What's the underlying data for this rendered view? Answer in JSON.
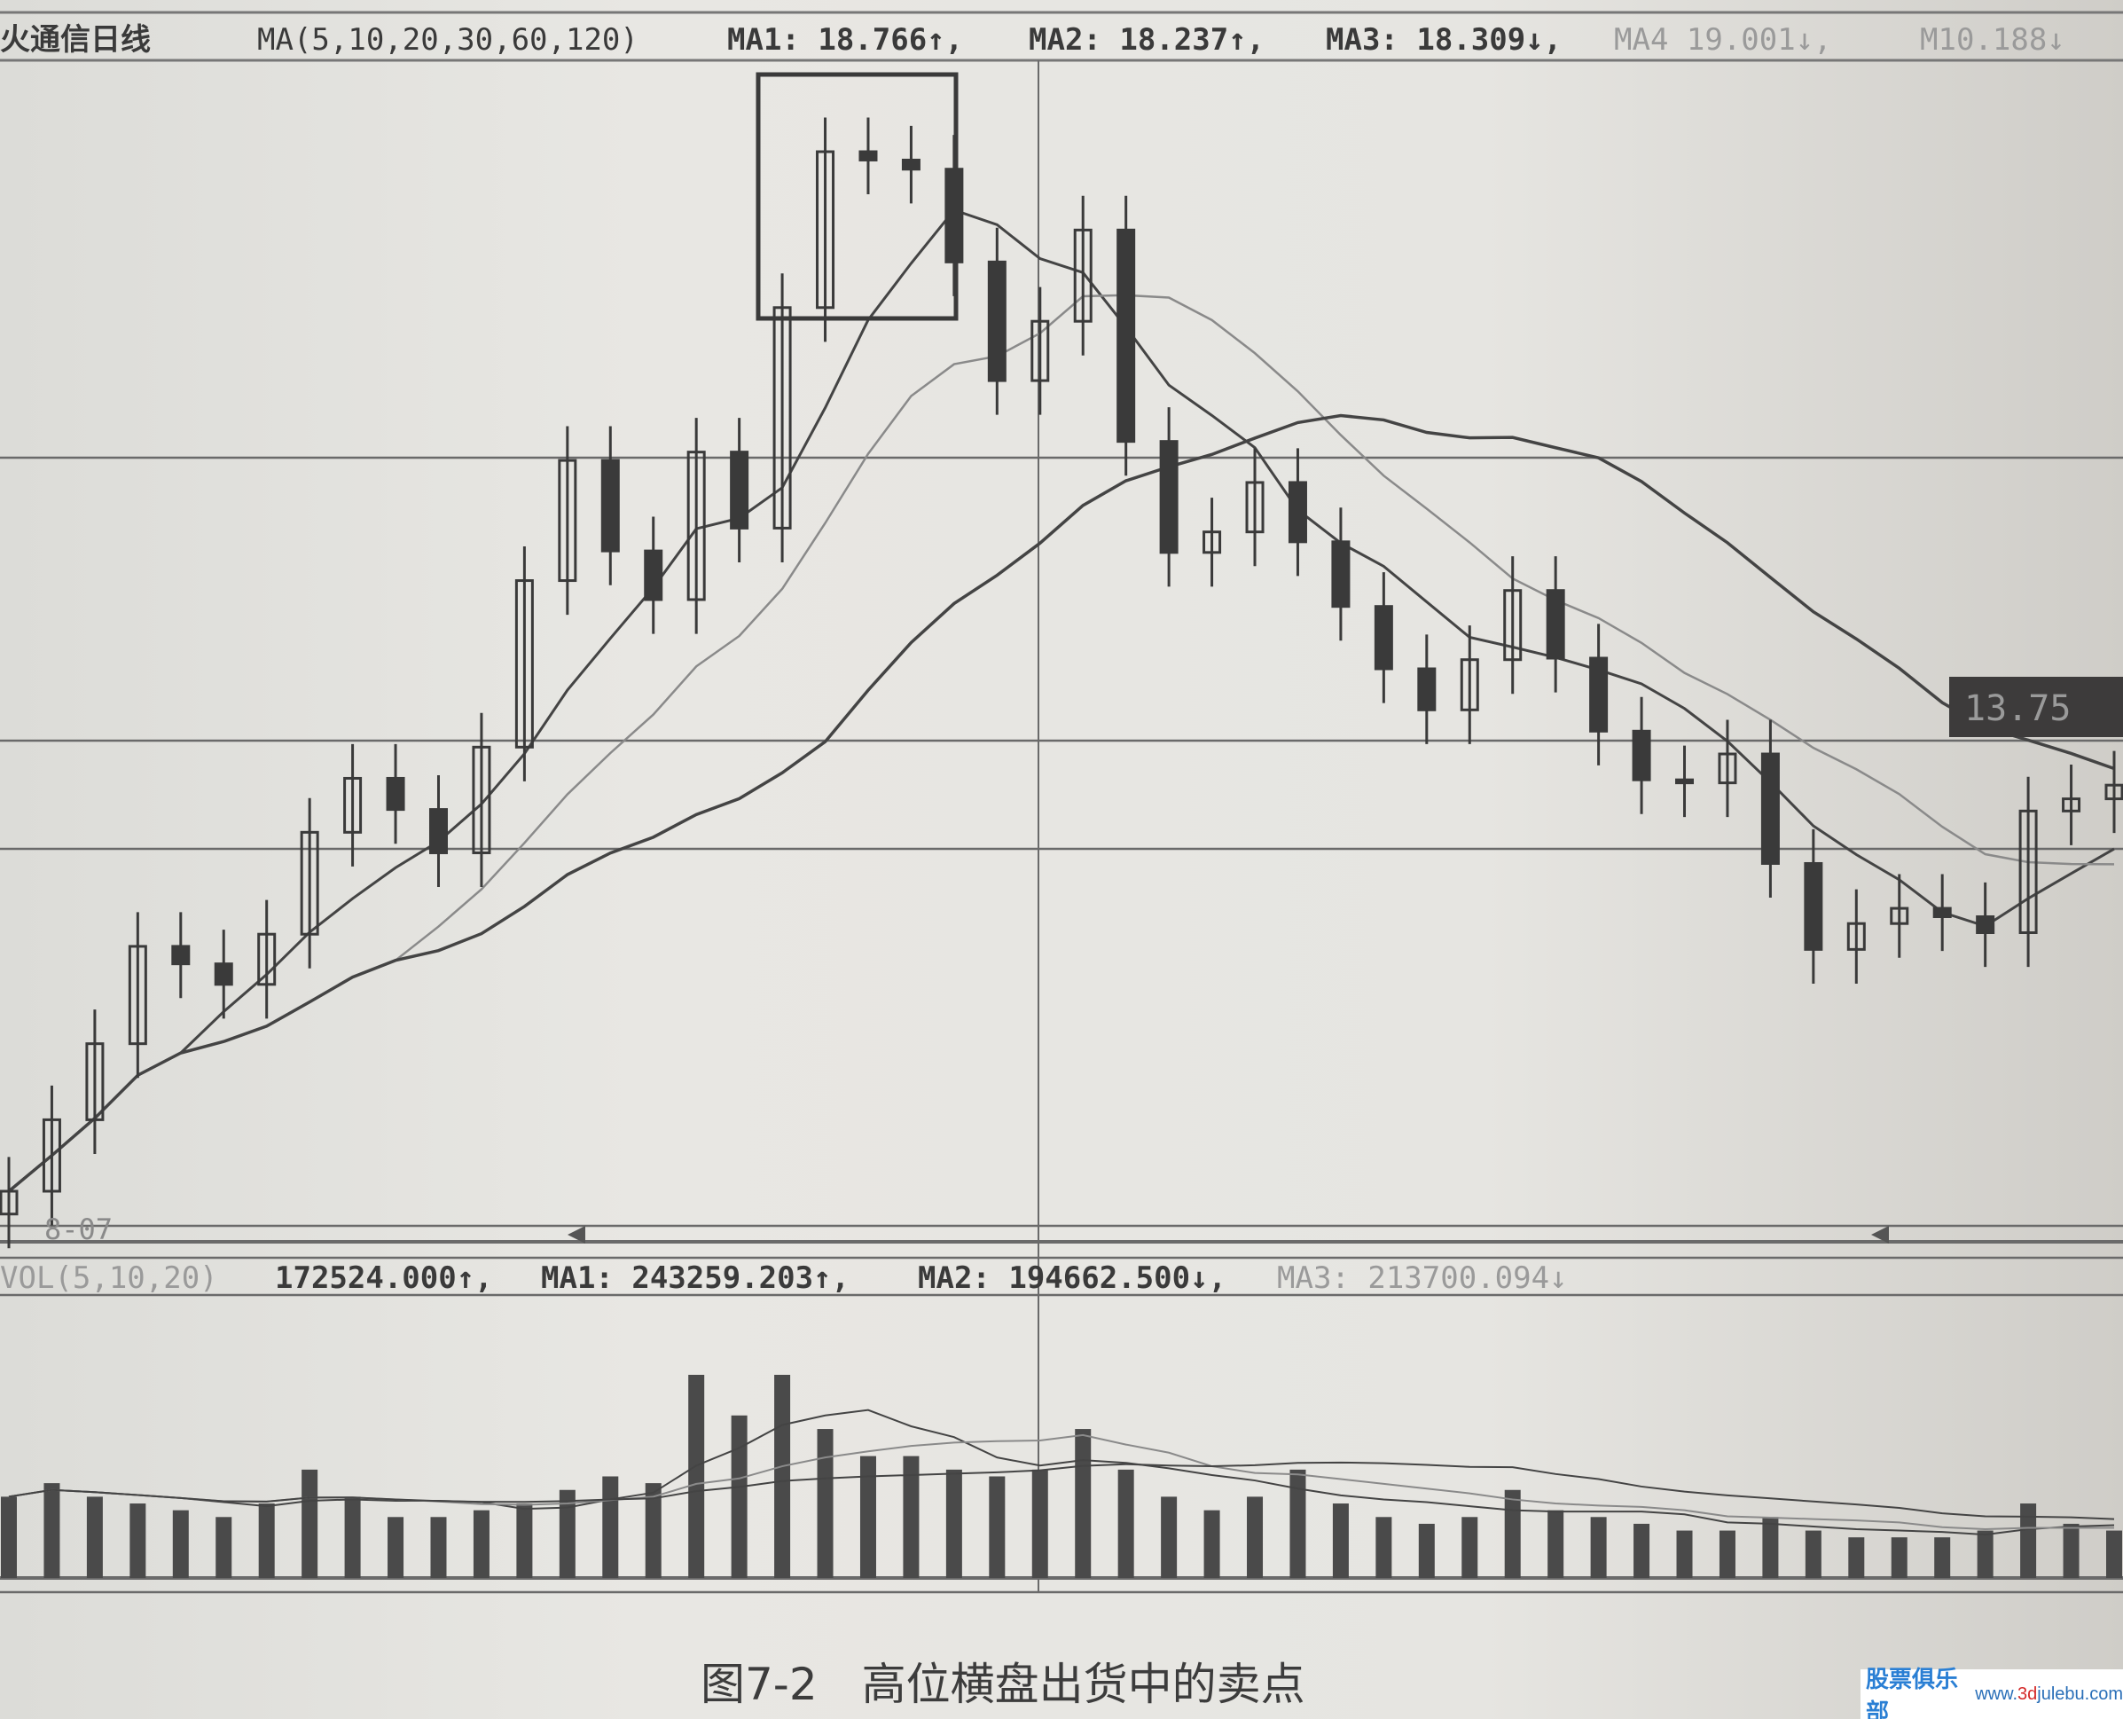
{
  "header": {
    "title": "火通信日线",
    "ma_params": "MA(5,10,20,30,60,120)",
    "ma1": "MA1: 18.766↑,",
    "ma2": "MA2: 18.237↑,",
    "ma3": "MA3: 18.309↓,",
    "ma4": "MA4 19.001↓,",
    "ma5": "M10.188↓"
  },
  "price_label": "13.75",
  "date_label": "8-07",
  "volume_header": {
    "params": "VOL(5,10,20)",
    "vol": "172524.000↑,",
    "ma1": "MA1: 243259.203↑,",
    "ma2": "MA2: 194662.500↓,",
    "ma3": "MA3: 213700.094↓"
  },
  "caption": "图7-2　高位横盘出货中的卖点",
  "watermark": {
    "logo": "股票俱乐部",
    "url_pre": "www.",
    "url_mid": "3d",
    "url_post": "julebu.com"
  },
  "chart_data": {
    "type": "candlestick",
    "title": "",
    "ylim": [
      6.75,
      22.24
    ],
    "volume_ylim": [
      0,
      615000
    ],
    "closes": [
      7.38,
      8.32,
      9.32,
      10.6,
      10.37,
      10.1,
      10.76,
      12.1,
      12.81,
      12.4,
      11.83,
      13.22,
      15.41,
      16.99,
      15.8,
      15.16,
      17.1,
      16.1,
      19.0,
      21.05,
      20.94,
      20.82,
      19.6,
      18.04,
      18.82,
      20.02,
      17.24,
      15.78,
      16.05,
      16.7,
      15.92,
      15.07,
      14.25,
      13.71,
      14.37,
      15.28,
      14.39,
      13.43,
      12.79,
      12.75,
      13.13,
      11.69,
      10.56,
      10.9,
      11.1,
      10.99,
      10.78,
      12.38,
      12.54,
      12.72
    ],
    "volumes": [
      180000,
      210000,
      180000,
      165000,
      150000,
      135000,
      165000,
      240000,
      180000,
      135000,
      135000,
      150000,
      165000,
      195000,
      225000,
      210000,
      450000,
      360000,
      450000,
      330000,
      270000,
      270000,
      240000,
      225000,
      240000,
      330000,
      240000,
      180000,
      150000,
      180000,
      240000,
      165000,
      135000,
      120000,
      135000,
      195000,
      150000,
      135000,
      120000,
      105000,
      105000,
      135000,
      105000,
      90000,
      90000,
      90000,
      105000,
      165000,
      120000,
      105000
    ],
    "ma_periods": [
      5,
      10,
      20
    ],
    "colors": {
      "candle": "#3a3a3a",
      "ma_dark": "#444444",
      "ma_light": "#8a8a8a",
      "grid": "#5a5a5a"
    }
  }
}
